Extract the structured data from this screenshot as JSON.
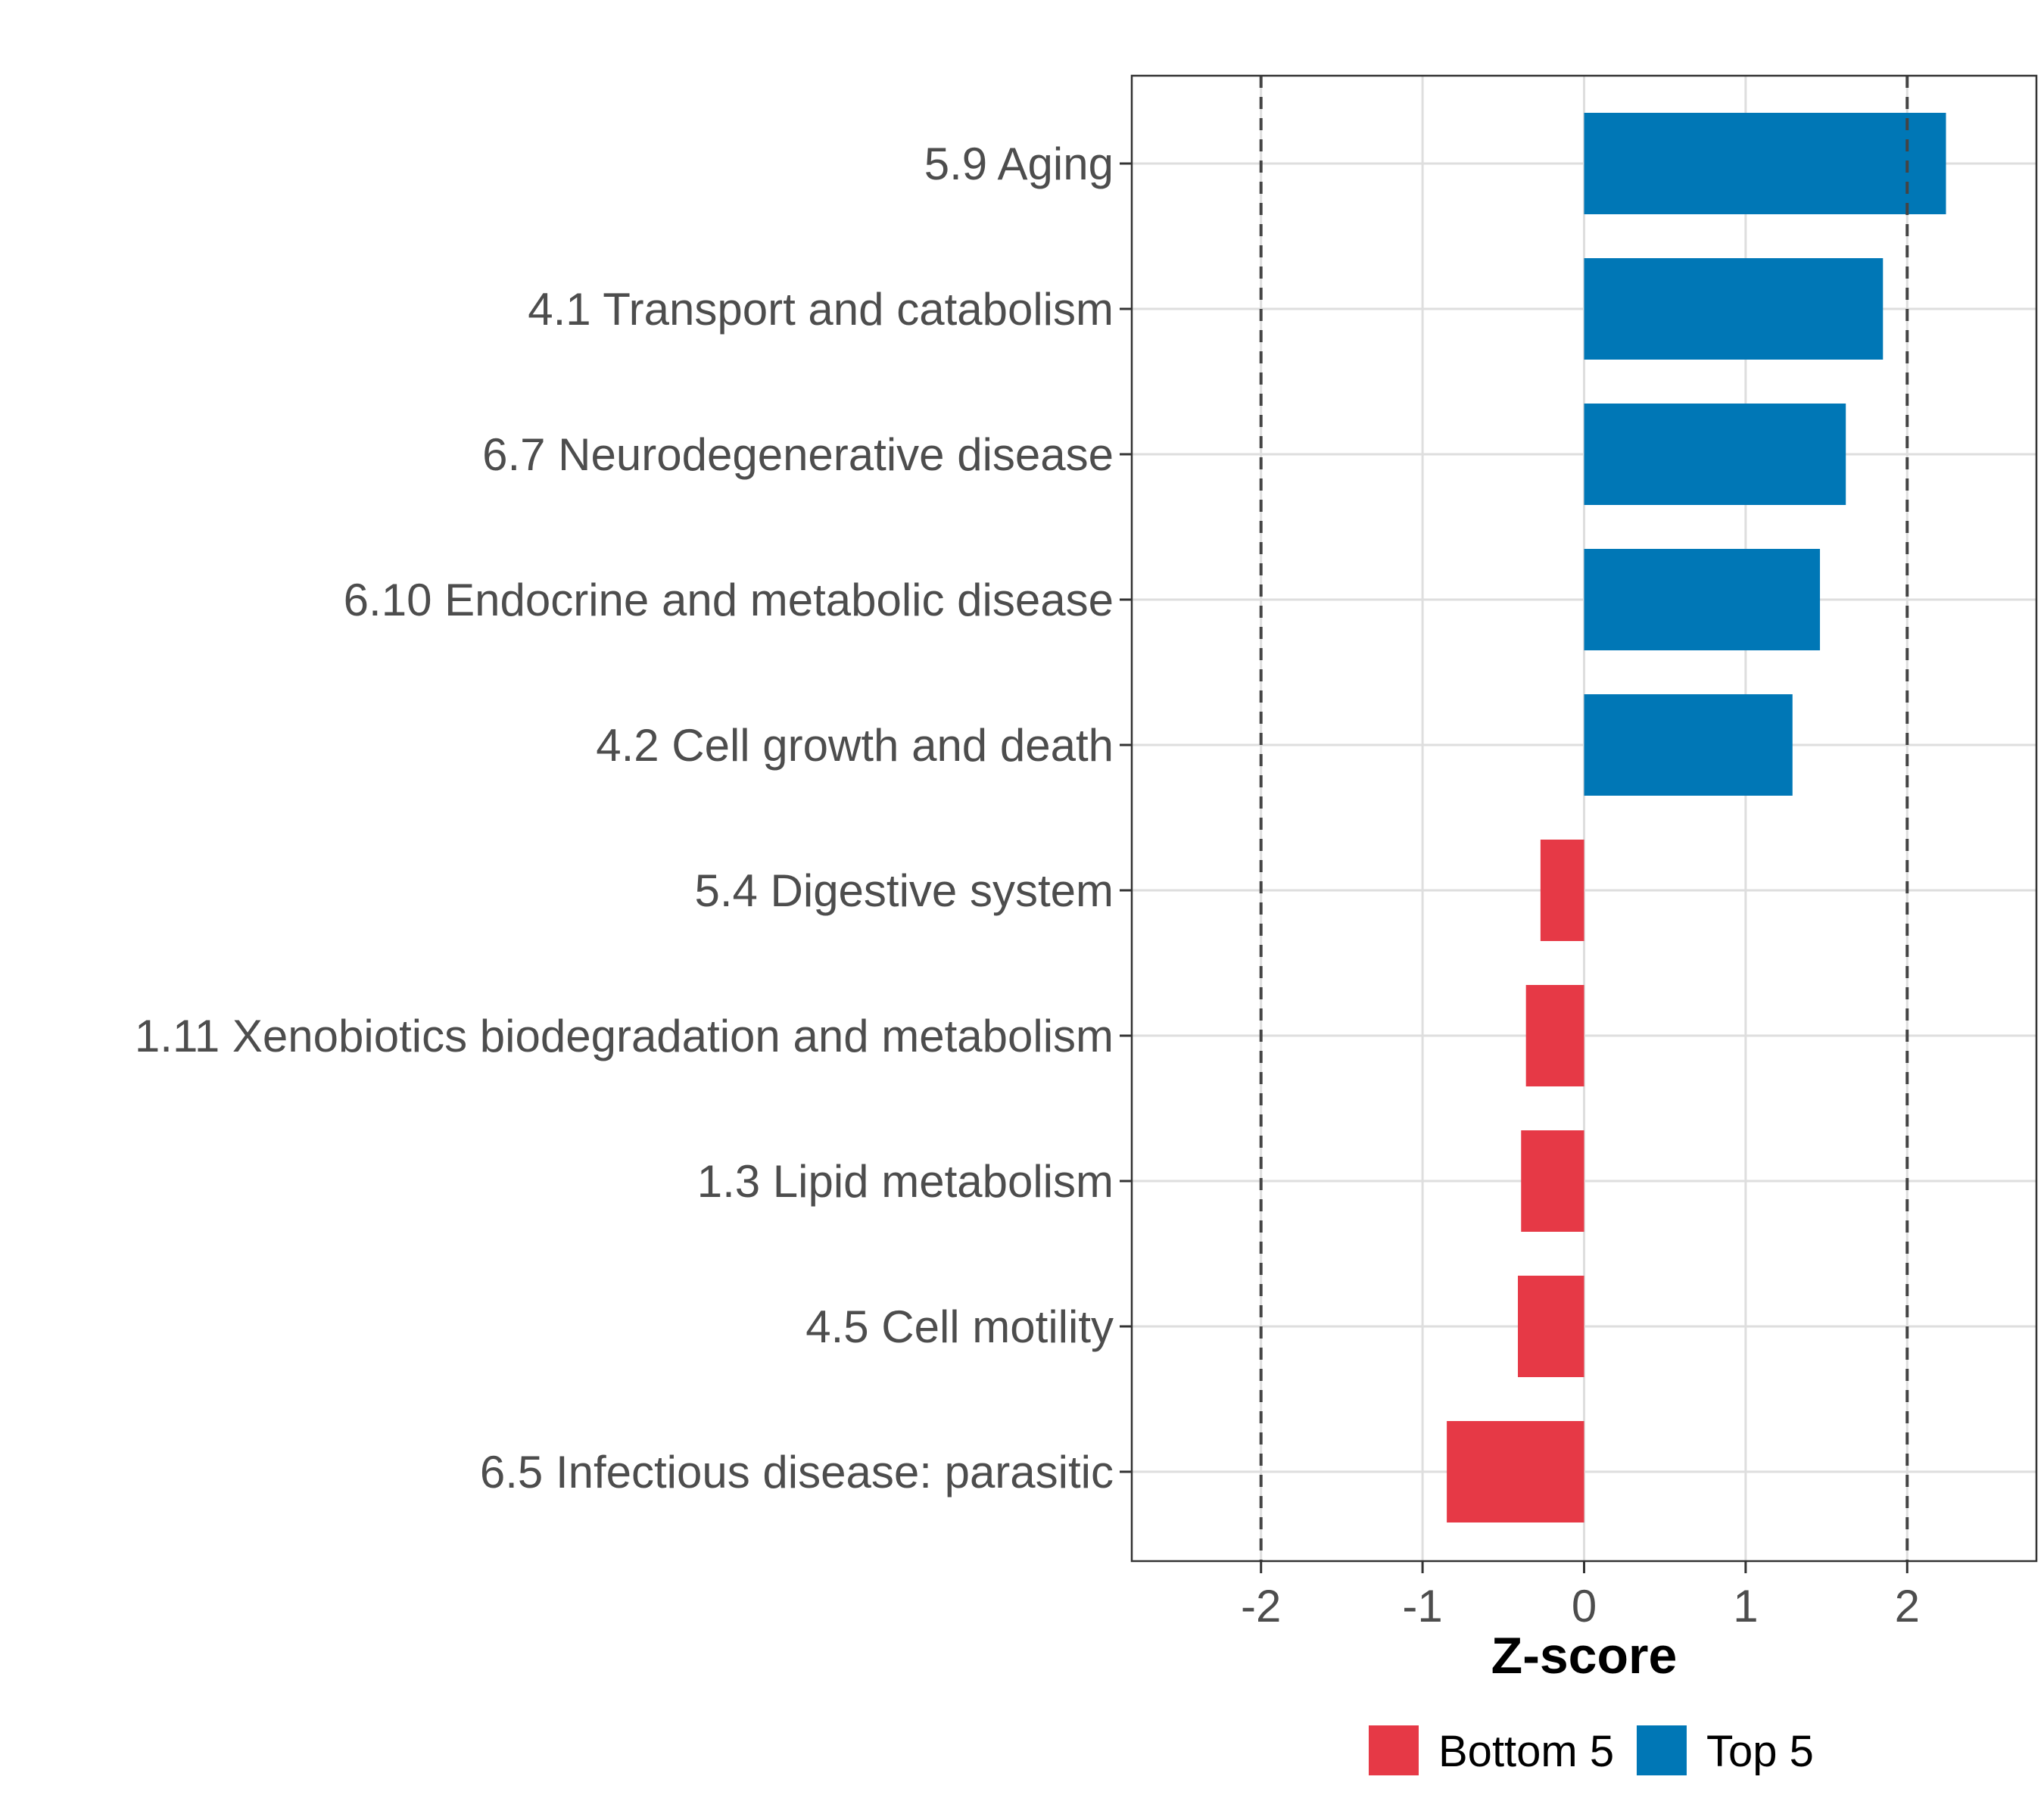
{
  "chart_data": {
    "type": "bar",
    "orientation": "horizontal",
    "categories": [
      "5.9 Aging",
      "4.1 Transport and catabolism",
      "6.7 Neurodegenerative disease",
      "6.10 Endocrine and metabolic disease",
      "4.2 Cell growth and death",
      "5.4 Digestive system",
      "1.11 Xenobiotics biodegradation and metabolism",
      "1.3 Lipid metabolism",
      "4.5 Cell motility",
      "6.5 Infectious disease: parasitic"
    ],
    "values": [
      2.24,
      1.85,
      1.62,
      1.46,
      1.29,
      -0.27,
      -0.36,
      -0.39,
      -0.41,
      -0.85
    ],
    "groups": [
      "Top 5",
      "Top 5",
      "Top 5",
      "Top 5",
      "Top 5",
      "Bottom 5",
      "Bottom 5",
      "Bottom 5",
      "Bottom 5",
      "Bottom 5"
    ],
    "xlabel": "Z-score",
    "ylabel": "",
    "xlim": [
      -2.8,
      2.8
    ],
    "xticks": [
      -2,
      -1,
      0,
      1,
      2
    ],
    "xtick_labels": [
      "-2",
      "-1",
      "0",
      "1",
      "2"
    ],
    "reference_lines": [
      -2,
      2
    ],
    "grid": true,
    "legend": {
      "position": "bottom",
      "entries": [
        {
          "label": "Bottom 5",
          "color": "#E63946"
        },
        {
          "label": "Top 5",
          "color": "#0077B6"
        }
      ]
    },
    "colors": {
      "Top 5": "#0077B6",
      "Bottom 5": "#E63946"
    }
  }
}
